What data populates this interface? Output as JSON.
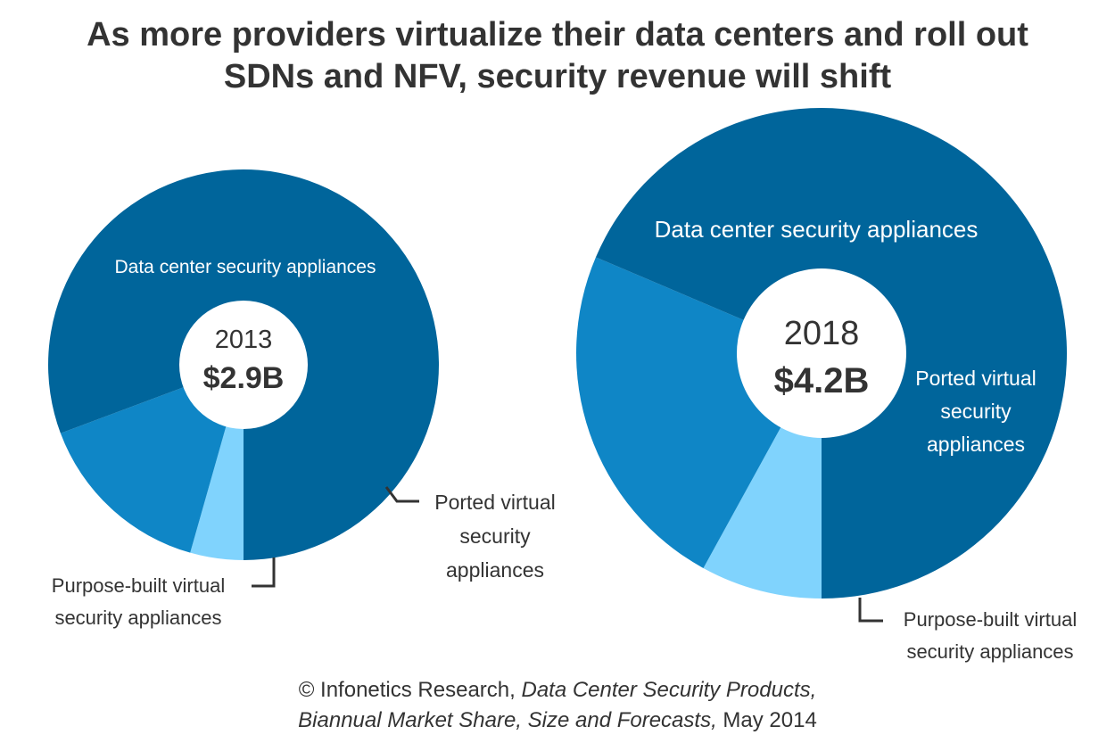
{
  "title_lines": [
    "As more providers virtualize their data centers and roll out",
    "SDNs and NFV, security revenue will shift"
  ],
  "colors": {
    "data_center": "#00659b",
    "ported": "#0f86c6",
    "purpose_built": "#80d3fd",
    "hole": "#ffffff",
    "label_dark": "#333333",
    "label_light": "#ffffff"
  },
  "chart_data": [
    {
      "type": "pie",
      "year": "2013",
      "total": "$2.9B",
      "total_value": 2.9,
      "unit": "$B",
      "slices": [
        {
          "name": "Data center security appliances",
          "share_pct": 80.7,
          "label_lines": [
            "Data center security appliances"
          ]
        },
        {
          "name": "Ported virtual security appliances",
          "share_pct": 14.9,
          "label_lines": [
            "Ported virtual",
            "security",
            "appliances"
          ]
        },
        {
          "name": "Purpose-built virtual security appliances",
          "share_pct": 4.4,
          "label_lines": [
            "Purpose-built virtual",
            "security appliances"
          ]
        }
      ]
    },
    {
      "type": "pie",
      "year": "2018",
      "total": "$4.2B",
      "total_value": 4.2,
      "unit": "$B",
      "slices": [
        {
          "name": "Data center security appliances",
          "share_pct": 68.6,
          "label_lines": [
            "Data center security appliances"
          ]
        },
        {
          "name": "Ported virtual security appliances",
          "share_pct": 23.4,
          "label_lines": [
            "Ported virtual",
            "security",
            "appliances"
          ]
        },
        {
          "name": "Purpose-built virtual security appliances",
          "share_pct": 8.0,
          "label_lines": [
            "Purpose-built virtual",
            "security appliances"
          ]
        }
      ]
    }
  ],
  "source": {
    "prefix": "© Infonetics Research, ",
    "title_part1": "Data Center Security Products,",
    "title_part2": "Biannual Market Share, Size and Forecasts,",
    "suffix": " May 2014"
  }
}
